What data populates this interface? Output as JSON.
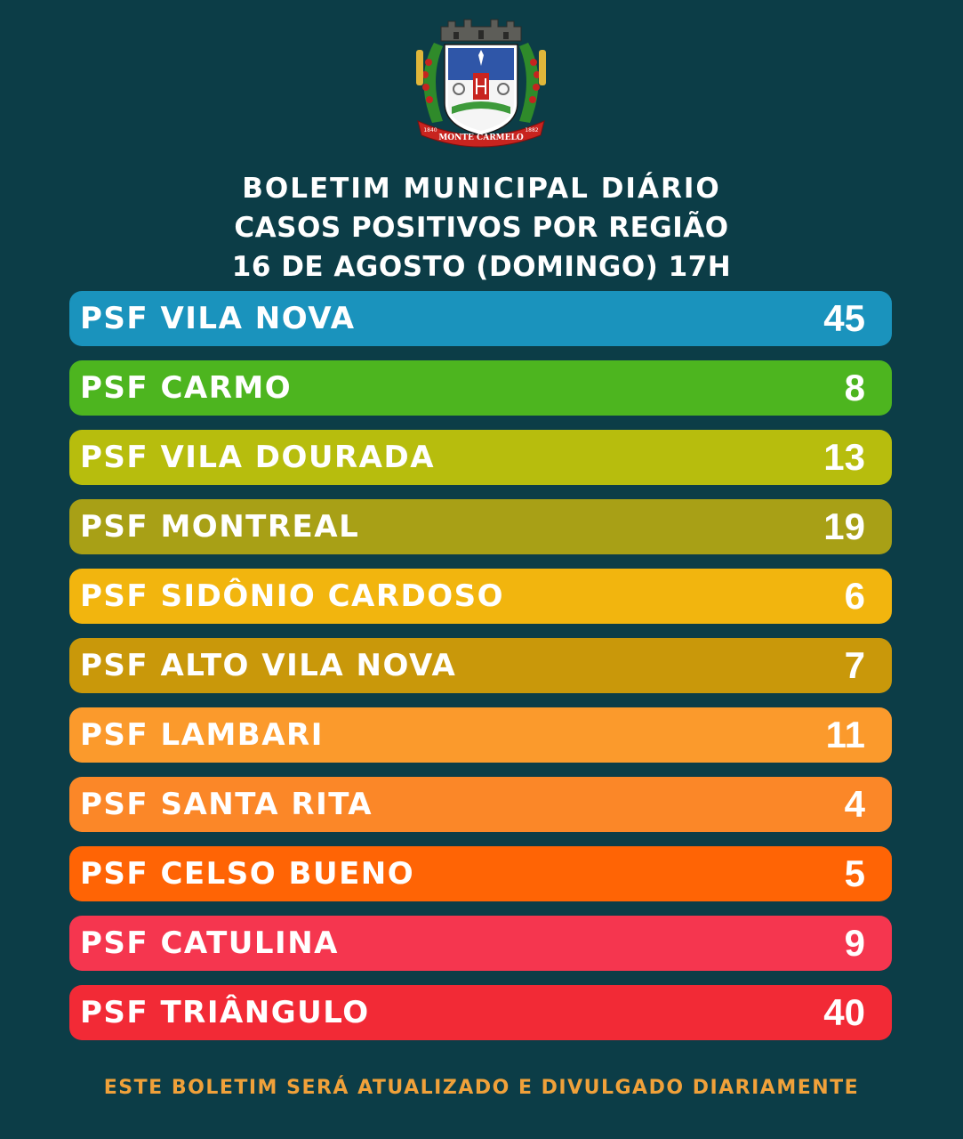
{
  "header": {
    "line1": "BOLETIM MUNICIPAL DIÁRIO",
    "line2": "CASOS POSITIVOS POR REGIÃO",
    "line3": "16  DE AGOSTO (DOMINGO) 17H"
  },
  "crest": {
    "banner": "MONTE CARMELO",
    "year_left": "1840",
    "year_right": "1882"
  },
  "regions": [
    {
      "label": "PSF VILA NOVA",
      "value": "45",
      "color": "#1a93bd"
    },
    {
      "label": "PSF CARMO",
      "value": "8",
      "color": "#4db51f"
    },
    {
      "label": "PSF VILA DOURADA",
      "value": "13",
      "color": "#b7bd0d"
    },
    {
      "label": "PSF MONTREAL",
      "value": "19",
      "color": "#a8a016"
    },
    {
      "label": "PSF SIDÔNIO CARDOSO",
      "value": "6",
      "color": "#f2b50e"
    },
    {
      "label": "PSF ALTO VILA NOVA",
      "value": "7",
      "color": "#c9980a"
    },
    {
      "label": "PSF LAMBARI",
      "value": "11",
      "color": "#fb9a2c"
    },
    {
      "label": "PSF SANTA RITA",
      "value": "4",
      "color": "#fb8728"
    },
    {
      "label": "PSF CELSO BUENO",
      "value": "5",
      "color": "#ff6405"
    },
    {
      "label": "PSF CATULINA",
      "value": "9",
      "color": "#f5364f"
    },
    {
      "label": "PSF TRIÂNGULO",
      "value": "40",
      "color": "#f22a36"
    }
  ],
  "footer": "ESTE BOLETIM SERÁ ATUALIZADO E DIVULGADO DIARIAMENTE"
}
